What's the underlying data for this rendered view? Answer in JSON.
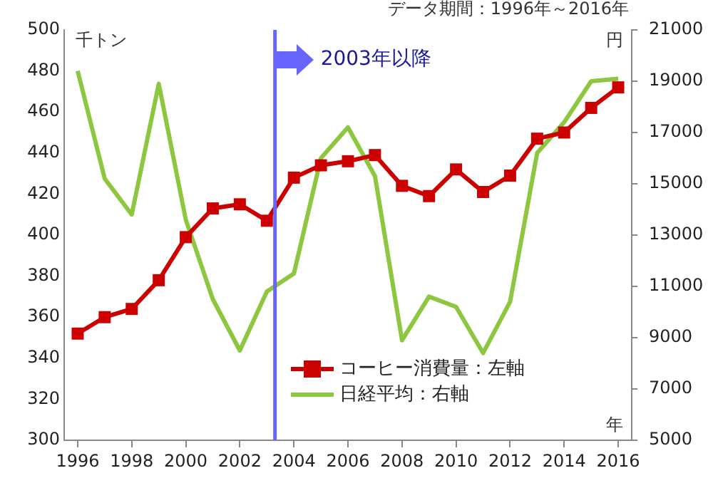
{
  "chart_data": {
    "type": "line",
    "x": [
      1996,
      1997,
      1998,
      1999,
      2000,
      2001,
      2002,
      2003,
      2004,
      2005,
      2006,
      2007,
      2008,
      2009,
      2010,
      2011,
      2012,
      2013,
      2014,
      2015,
      2016
    ],
    "xlim": [
      1995.5,
      2016.5
    ],
    "xticks": [
      1996,
      1998,
      2000,
      2002,
      2004,
      2006,
      2008,
      2010,
      2012,
      2014,
      2016
    ],
    "series": [
      {
        "name": "コーヒー消費量：左軸",
        "type": "line",
        "color": "#cc0000",
        "marker": "square",
        "values": [
          352,
          360,
          364,
          378,
          399,
          413,
          415,
          407,
          428,
          434,
          436,
          439,
          424,
          419,
          432,
          421,
          429,
          447,
          450,
          462,
          472
        ]
      },
      {
        "name": "日経平均：右軸",
        "type": "line",
        "axis": "y2",
        "color": "#8dc63f",
        "marker": "none",
        "values": [
          19400,
          15200,
          13800,
          18900,
          13600,
          10500,
          8500,
          10800,
          11500,
          16000,
          17200,
          15300,
          8900,
          10600,
          10200,
          8400,
          10400,
          16200,
          17400,
          19000,
          19100
        ]
      }
    ],
    "ylim": [
      300,
      500
    ],
    "yticks": [
      300,
      320,
      340,
      360,
      380,
      400,
      420,
      440,
      460,
      480,
      500
    ],
    "y2lim": [
      5000,
      21000
    ],
    "y2ticks": [
      5000,
      7000,
      9000,
      11000,
      13000,
      15000,
      17000,
      19000,
      21000
    ],
    "ylabel": "千トン",
    "y2label": "円",
    "xlabel": "年",
    "annotations": [
      "データ期間：1996年～2016年"
    ],
    "ref_lines": [
      {
        "axis": "x",
        "value": 2003.3,
        "label": "2003年以降",
        "color": "#6666ff"
      }
    ],
    "grid": false,
    "legend": "bottom"
  }
}
